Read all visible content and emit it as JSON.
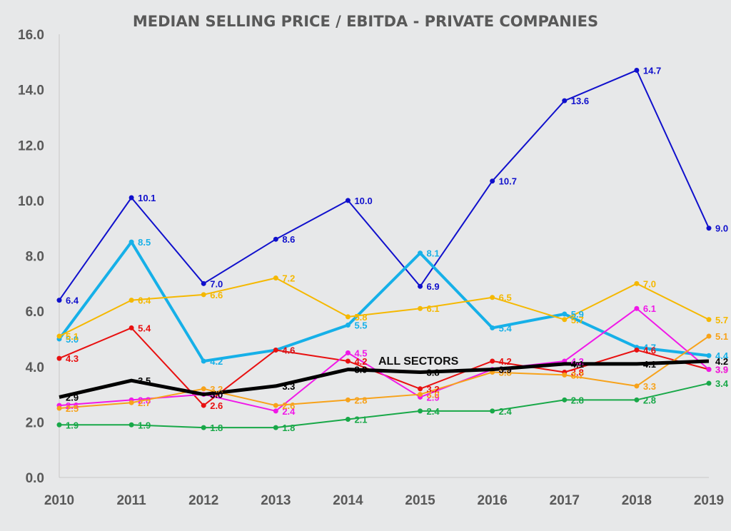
{
  "chart_data": {
    "type": "line",
    "title": "MEDIAN SELLING PRICE / EBITDA - PRIVATE COMPANIES",
    "xlabel": "",
    "ylabel": "",
    "categories": [
      "2010",
      "2011",
      "2012",
      "2013",
      "2014",
      "2015",
      "2016",
      "2017",
      "2018",
      "2019"
    ],
    "ylim": [
      0,
      16
    ],
    "yticks": [
      "0.0",
      "2.0",
      "4.0",
      "6.0",
      "8.0",
      "10.0",
      "12.0",
      "14.0",
      "16.0"
    ],
    "grid": false,
    "legend": "none",
    "annotation": "ALL SECTORS",
    "series": [
      {
        "color": "#1010cc",
        "width": 2,
        "values": [
          6.4,
          10.1,
          7.0,
          8.6,
          10.0,
          6.9,
          10.7,
          13.6,
          14.7,
          9.0
        ]
      },
      {
        "color": "#16b0e8",
        "width": 4,
        "values": [
          5.0,
          8.5,
          4.2,
          4.6,
          5.5,
          8.1,
          5.4,
          5.9,
          4.7,
          4.4
        ]
      },
      {
        "color": "#f5b800",
        "width": 2,
        "values": [
          5.1,
          6.4,
          6.6,
          7.2,
          5.8,
          6.1,
          6.5,
          5.7,
          7.0,
          5.7
        ]
      },
      {
        "color": "#e81010",
        "width": 2,
        "values": [
          4.3,
          5.4,
          2.6,
          4.6,
          4.2,
          3.2,
          4.2,
          3.8,
          4.6,
          3.9
        ]
      },
      {
        "color": "#f018e8",
        "width": 2,
        "values": [
          2.6,
          2.8,
          3.0,
          2.4,
          4.5,
          2.9,
          3.9,
          4.2,
          6.1,
          3.9
        ]
      },
      {
        "color": "#f7a21a",
        "width": 2,
        "values": [
          2.5,
          2.7,
          3.2,
          2.6,
          2.8,
          3.0,
          3.8,
          3.7,
          3.3,
          5.1
        ]
      },
      {
        "color": "#18a848",
        "width": 2,
        "values": [
          1.9,
          1.9,
          1.8,
          1.8,
          2.1,
          2.4,
          2.4,
          2.8,
          2.8,
          3.4
        ]
      },
      {
        "color": "#000000",
        "width": 5,
        "values": [
          2.9,
          3.5,
          3.0,
          3.3,
          3.9,
          3.8,
          3.9,
          4.1,
          4.1,
          4.2
        ]
      }
    ]
  }
}
